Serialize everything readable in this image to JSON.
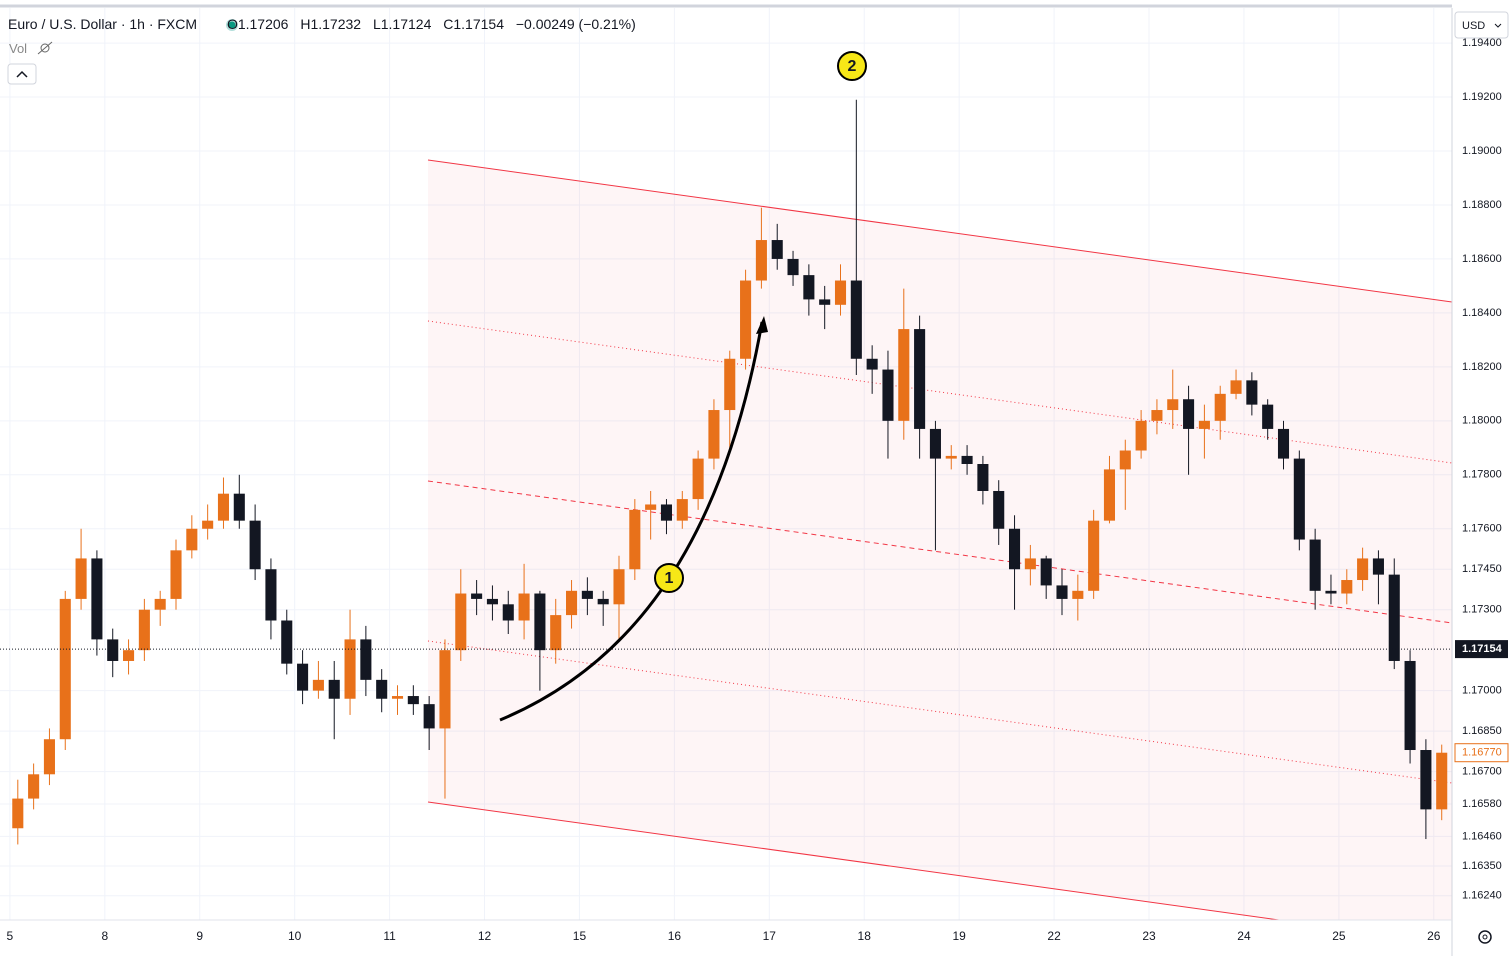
{
  "header": {
    "symbol": "Euro / U.S. Dollar · 1h · FXCM",
    "ohlc_keys": [
      "O",
      "H",
      "L",
      "C"
    ],
    "ohlc_values": [
      "1.17206",
      "1.17232",
      "1.17124",
      "1.17154"
    ],
    "change": "−0.00249 (−0.21%)",
    "volume": "Vol",
    "currency": "USD"
  },
  "chart_data": {
    "type": "candlestick",
    "up_color": "#e8711a",
    "down_color": "#131722",
    "grid": true,
    "x": [
      2,
      6,
      10,
      14,
      18,
      22,
      26,
      30,
      34,
      38,
      42,
      46,
      50,
      54,
      58,
      62,
      66,
      70,
      74,
      78,
      82,
      86,
      90,
      94,
      98,
      102,
      106,
      110,
      114,
      118,
      122,
      126,
      130,
      134,
      138,
      142,
      146,
      150,
      154,
      158,
      162,
      166,
      170,
      174,
      178,
      182,
      186,
      190,
      194,
      198,
      202,
      206,
      210,
      214,
      218,
      222,
      226,
      230,
      234,
      238,
      242,
      246,
      250,
      254,
      258,
      262,
      266,
      270,
      274,
      278,
      282,
      286,
      290,
      294,
      298,
      302,
      306,
      310,
      314,
      318,
      322,
      326,
      330,
      334,
      338,
      342,
      346,
      350,
      354,
      358,
      362
    ],
    "open": [
      1.1649,
      1.166,
      1.1669,
      1.1682,
      1.1734,
      1.1749,
      1.1719,
      1.1711,
      1.1715,
      1.173,
      1.1734,
      1.1752,
      1.176,
      1.1763,
      1.1773,
      1.1763,
      1.1745,
      1.1726,
      1.171,
      1.17,
      1.1704,
      1.1697,
      1.1719,
      1.1704,
      1.1697,
      1.1698,
      1.1695,
      1.1686,
      1.1715,
      1.1736,
      1.1734,
      1.1732,
      1.1726,
      1.1736,
      1.1715,
      1.1728,
      1.1737,
      1.1734,
      1.1732,
      1.1745,
      1.1767,
      1.1769,
      1.1763,
      1.1771,
      1.1786,
      1.1804,
      1.1823,
      1.1852,
      1.1867,
      1.186,
      1.1854,
      1.1845,
      1.1843,
      1.1852,
      1.1823,
      1.1819,
      1.18,
      1.1834,
      1.1797,
      1.1786,
      1.1787,
      1.1784,
      1.1774,
      1.176,
      1.1745,
      1.1749,
      1.1739,
      1.1734,
      1.1737,
      1.1763,
      1.1782,
      1.1789,
      1.18,
      1.1804,
      1.1808,
      1.1797,
      1.18,
      1.181,
      1.1815,
      1.1806,
      1.1797,
      1.1786,
      1.1756,
      1.1737,
      1.1736,
      1.1741,
      1.1749,
      1.1743,
      1.1711,
      1.1678,
      1.1656
    ],
    "high": [
      1.1667,
      1.1673,
      1.1686,
      1.1737,
      1.176,
      1.1752,
      1.1723,
      1.1719,
      1.1734,
      1.1737,
      1.1756,
      1.1765,
      1.1769,
      1.1779,
      1.178,
      1.1769,
      1.1749,
      1.173,
      1.1715,
      1.1711,
      1.1711,
      1.173,
      1.1724,
      1.1708,
      1.1702,
      1.1702,
      1.1698,
      1.1719,
      1.1745,
      1.1741,
      1.1739,
      1.1737,
      1.1747,
      1.1737,
      1.1734,
      1.1741,
      1.1742,
      1.1737,
      1.175,
      1.1771,
      1.1774,
      1.1771,
      1.1774,
      1.1789,
      1.1808,
      1.1826,
      1.1856,
      1.1879,
      1.1873,
      1.1863,
      1.1858,
      1.185,
      1.1858,
      1.1919,
      1.1828,
      1.1826,
      1.1849,
      1.1839,
      1.18,
      1.1791,
      1.1791,
      1.1787,
      1.1778,
      1.1765,
      1.1754,
      1.175,
      1.1745,
      1.1743,
      1.1767,
      1.1787,
      1.1793,
      1.1804,
      1.1808,
      1.1819,
      1.1813,
      1.1806,
      1.1813,
      1.1819,
      1.1818,
      1.1808,
      1.18,
      1.1789,
      1.176,
      1.1743,
      1.1745,
      1.1753,
      1.1752,
      1.1749,
      1.1715,
      1.1682,
      1.168
    ],
    "low": [
      1.1643,
      1.1656,
      1.1665,
      1.1678,
      1.173,
      1.1713,
      1.1705,
      1.1706,
      1.1711,
      1.1724,
      1.173,
      1.1749,
      1.1756,
      1.176,
      1.176,
      1.1741,
      1.1719,
      1.1706,
      1.1695,
      1.1697,
      1.1682,
      1.1691,
      1.1698,
      1.1692,
      1.1691,
      1.1691,
      1.1678,
      1.166,
      1.1711,
      1.1728,
      1.1726,
      1.1721,
      1.1719,
      1.17,
      1.171,
      1.1723,
      1.1728,
      1.1724,
      1.1719,
      1.1741,
      1.1756,
      1.1758,
      1.176,
      1.1767,
      1.1782,
      1.1789,
      1.1819,
      1.1849,
      1.1856,
      1.185,
      1.1839,
      1.1834,
      1.1839,
      1.1817,
      1.181,
      1.1786,
      1.1793,
      1.1786,
      1.1752,
      1.1782,
      1.178,
      1.1769,
      1.1754,
      1.173,
      1.1739,
      1.1734,
      1.1728,
      1.1726,
      1.1734,
      1.1762,
      1.1767,
      1.1786,
      1.1795,
      1.1797,
      1.178,
      1.1786,
      1.1793,
      1.1808,
      1.1802,
      1.1793,
      1.1782,
      1.1752,
      1.173,
      1.1732,
      1.1732,
      1.1737,
      1.1732,
      1.1708,
      1.1673,
      1.1645,
      1.1652
    ],
    "close": [
      1.166,
      1.1669,
      1.1682,
      1.1734,
      1.1749,
      1.1719,
      1.1711,
      1.1715,
      1.173,
      1.1734,
      1.1752,
      1.176,
      1.1763,
      1.1773,
      1.1763,
      1.1745,
      1.1726,
      1.171,
      1.17,
      1.1704,
      1.1697,
      1.1719,
      1.1704,
      1.1697,
      1.1698,
      1.1695,
      1.1686,
      1.1715,
      1.1736,
      1.1734,
      1.1732,
      1.1726,
      1.1736,
      1.1715,
      1.1728,
      1.1737,
      1.1734,
      1.1732,
      1.1745,
      1.1767,
      1.1769,
      1.1763,
      1.1771,
      1.1786,
      1.1804,
      1.1823,
      1.1852,
      1.1867,
      1.186,
      1.1854,
      1.1845,
      1.1843,
      1.1852,
      1.1823,
      1.1819,
      1.18,
      1.1834,
      1.1797,
      1.1786,
      1.1787,
      1.1784,
      1.1774,
      1.176,
      1.1745,
      1.1749,
      1.1739,
      1.1734,
      1.1737,
      1.1763,
      1.1782,
      1.1789,
      1.18,
      1.1804,
      1.1808,
      1.1797,
      1.18,
      1.181,
      1.1815,
      1.1806,
      1.1797,
      1.1786,
      1.1756,
      1.1737,
      1.1736,
      1.1741,
      1.1749,
      1.1743,
      1.1711,
      1.1678,
      1.1656,
      1.1677
    ],
    "xlim": [
      -2.5,
      364.6
    ],
    "xticks": [
      {
        "value": 0,
        "label": "5"
      },
      {
        "value": 24,
        "label": "8"
      },
      {
        "value": 48,
        "label": "9"
      },
      {
        "value": 72,
        "label": "10"
      },
      {
        "value": 96,
        "label": "11"
      },
      {
        "value": 120,
        "label": "12"
      },
      {
        "value": 144,
        "label": "15"
      },
      {
        "value": 168,
        "label": "16"
      },
      {
        "value": 192,
        "label": "17"
      },
      {
        "value": 216,
        "label": "18"
      },
      {
        "value": 240,
        "label": "19"
      },
      {
        "value": 264,
        "label": "22"
      },
      {
        "value": 288,
        "label": "23"
      },
      {
        "value": 312,
        "label": "24"
      },
      {
        "value": 336,
        "label": "25"
      },
      {
        "value": 360,
        "label": "26"
      }
    ],
    "ylim": [
      1.1615,
      1.1953
    ],
    "yticks": [
      {
        "value": 1.194,
        "label": "1.19400"
      },
      {
        "value": 1.192,
        "label": "1.19200"
      },
      {
        "value": 1.19,
        "label": "1.19000"
      },
      {
        "value": 1.188,
        "label": "1.18800"
      },
      {
        "value": 1.186,
        "label": "1.18600"
      },
      {
        "value": 1.184,
        "label": "1.18400"
      },
      {
        "value": 1.182,
        "label": "1.18200"
      },
      {
        "value": 1.18,
        "label": "1.18000"
      },
      {
        "value": 1.178,
        "label": "1.17800"
      },
      {
        "value": 1.176,
        "label": "1.17600"
      },
      {
        "value": 1.1745,
        "label": "1.17450"
      },
      {
        "value": 1.173,
        "label": "1.17300"
      },
      {
        "value": 1.17,
        "label": "1.17000"
      },
      {
        "value": 1.1685,
        "label": "1.16850"
      },
      {
        "value": 1.167,
        "label": "1.16700"
      },
      {
        "value": 1.1658,
        "label": "1.16580"
      },
      {
        "value": 1.1646,
        "label": "1.16460"
      },
      {
        "value": 1.1635,
        "label": "1.16350"
      },
      {
        "value": 1.1624,
        "label": "1.16240"
      }
    ],
    "price_markers": [
      {
        "value": 1.17154,
        "label": "1.17154"
      },
      {
        "value": 1.1677,
        "label": "1.16770"
      }
    ],
    "annotations": [
      "1",
      "2"
    ]
  }
}
